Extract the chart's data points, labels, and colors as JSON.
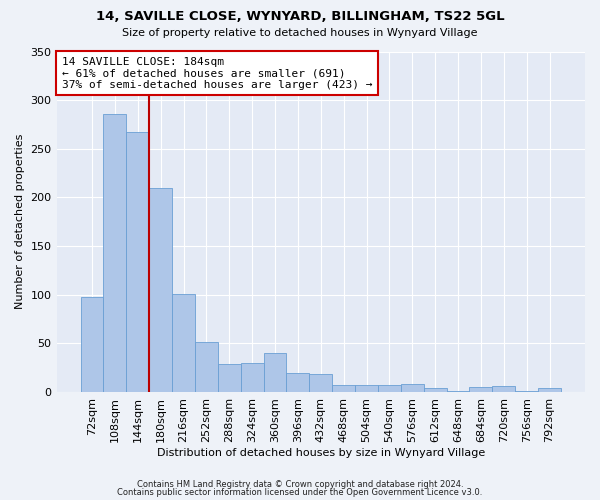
{
  "title1": "14, SAVILLE CLOSE, WYNYARD, BILLINGHAM, TS22 5GL",
  "title2": "Size of property relative to detached houses in Wynyard Village",
  "xlabel": "Distribution of detached houses by size in Wynyard Village",
  "ylabel": "Number of detached properties",
  "categories": [
    "72sqm",
    "108sqm",
    "144sqm",
    "180sqm",
    "216sqm",
    "252sqm",
    "288sqm",
    "324sqm",
    "360sqm",
    "396sqm",
    "432sqm",
    "468sqm",
    "504sqm",
    "540sqm",
    "576sqm",
    "612sqm",
    "648sqm",
    "684sqm",
    "720sqm",
    "756sqm",
    "792sqm"
  ],
  "values": [
    98,
    286,
    267,
    210,
    101,
    51,
    29,
    30,
    40,
    19,
    18,
    7,
    7,
    7,
    8,
    4,
    1,
    5,
    6,
    1,
    4
  ],
  "bar_color": "#aec6e8",
  "bar_edge_color": "#6a9fd4",
  "vline_color": "#bb0000",
  "annotation_text": "14 SAVILLE CLOSE: 184sqm\n← 61% of detached houses are smaller (691)\n37% of semi-detached houses are larger (423) →",
  "annotation_box_color": "#ffffff",
  "annotation_box_edge_color": "#cc0000",
  "ylim": [
    0,
    350
  ],
  "yticks": [
    0,
    50,
    100,
    150,
    200,
    250,
    300,
    350
  ],
  "footer_line1": "Contains HM Land Registry data © Crown copyright and database right 2024.",
  "footer_line2": "Contains public sector information licensed under the Open Government Licence v3.0.",
  "bg_color": "#eef2f8",
  "plot_bg_color": "#e4eaf5"
}
